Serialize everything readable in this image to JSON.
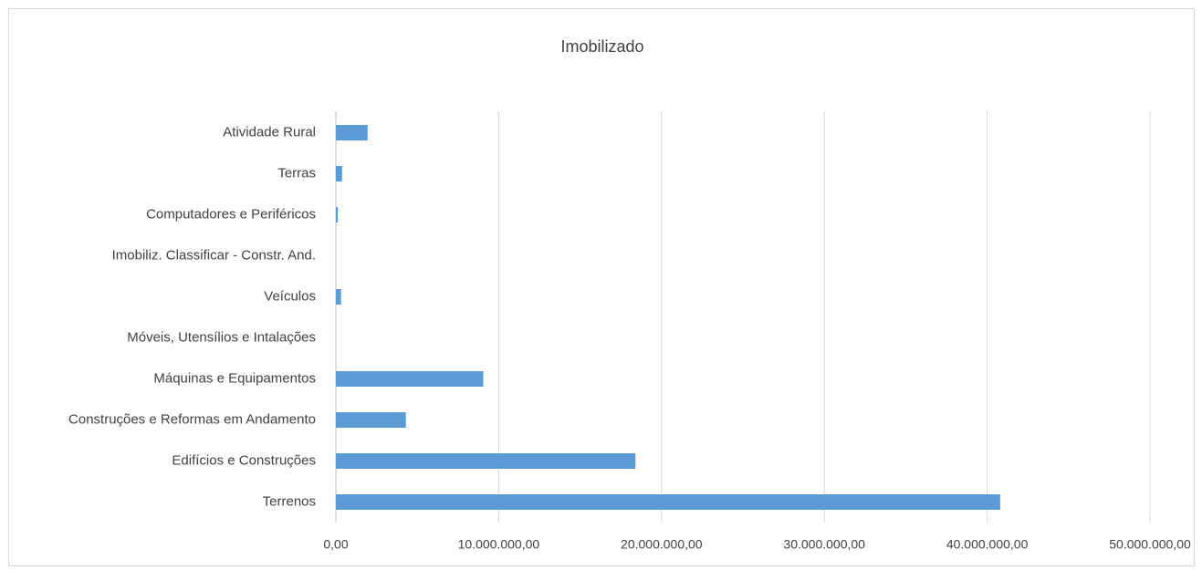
{
  "chart_data": {
    "type": "bar",
    "orientation": "horizontal",
    "title": "Imobilizado",
    "categories": [
      "Atividade Rural",
      "Terras",
      "Computadores e Periféricos",
      "Imobiliz. Classificar - Constr. And.",
      "Veículos",
      "Móveis, Utensílios e Intalações",
      "Máquinas e Equipamentos",
      "Construções e Reformas em Andamento",
      "Edifícios e  Construções",
      "Terrenos"
    ],
    "values": [
      1950000,
      380000,
      120000,
      0,
      320000,
      0,
      9050000,
      4300000,
      18400000,
      40800000
    ],
    "xlim": [
      0,
      50000000
    ],
    "xticks": [
      0,
      10000000,
      20000000,
      30000000,
      40000000,
      50000000
    ],
    "xtick_labels": [
      "0,00",
      "10.000.000,00",
      "20.000.000,00",
      "30.000.000,00",
      "40.000.000,00",
      "50.000.000,00"
    ],
    "grid": true,
    "legend": "none",
    "colors": {
      "bar": "#5b9bd5",
      "grid": "#d9d9d9",
      "axis": "#bfbfbf",
      "text": "#404040"
    }
  }
}
